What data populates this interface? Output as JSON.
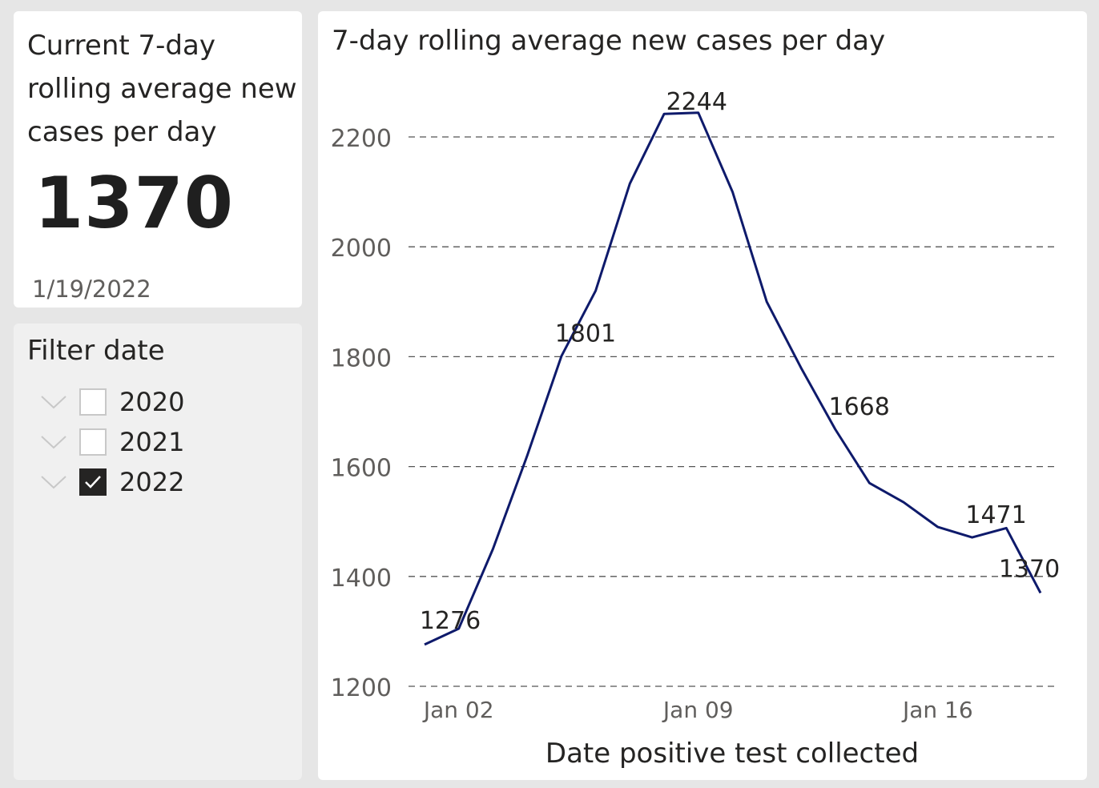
{
  "kpi": {
    "title": "Current 7-day rolling average new cases per day",
    "value": "1370",
    "date": "1/19/2022"
  },
  "filter": {
    "title": "Filter date",
    "items": [
      {
        "label": "2020",
        "checked": false
      },
      {
        "label": "2021",
        "checked": false
      },
      {
        "label": "2022",
        "checked": true
      }
    ]
  },
  "chart_data": {
    "type": "line",
    "title": "7-day rolling average new cases per day",
    "xlabel": "Date positive test collected",
    "ylabel": "",
    "ylim": [
      1200,
      2300
    ],
    "yticks": [
      1200,
      1400,
      1600,
      1800,
      2000,
      2200
    ],
    "xtick_labels": [
      "Jan 02",
      "Jan 09",
      "Jan 16"
    ],
    "grid": true,
    "line_color": "#0e1a6b",
    "x": [
      "2022-01-01",
      "2022-01-02",
      "2022-01-03",
      "2022-01-04",
      "2022-01-05",
      "2022-01-06",
      "2022-01-07",
      "2022-01-08",
      "2022-01-09",
      "2022-01-10",
      "2022-01-11",
      "2022-01-12",
      "2022-01-13",
      "2022-01-14",
      "2022-01-15",
      "2022-01-16",
      "2022-01-17",
      "2022-01-18",
      "2022-01-19"
    ],
    "series": [
      {
        "values": [
          1276,
          1305,
          1450,
          1620,
          1801,
          1920,
          2115,
          2242,
          2244,
          2100,
          1900,
          1780,
          1668,
          1570,
          1535,
          1490,
          1471,
          1488,
          1370
        ]
      }
    ],
    "data_labels": [
      {
        "index": 0,
        "label": "1276"
      },
      {
        "index": 4,
        "label": "1801"
      },
      {
        "index": 8,
        "label": "2244"
      },
      {
        "index": 12,
        "label": "1668"
      },
      {
        "index": 16,
        "label": "1471"
      },
      {
        "index": 18,
        "label": "1370"
      }
    ]
  }
}
